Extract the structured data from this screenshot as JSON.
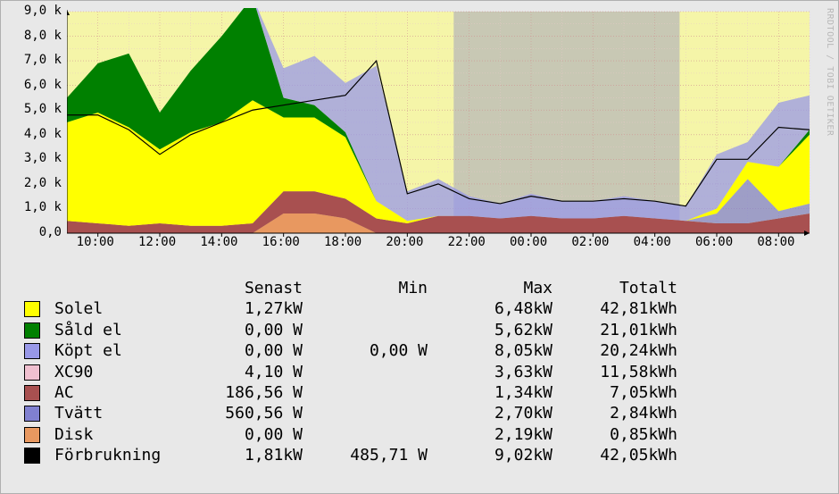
{
  "watermark": "RRDTOOL / TOBI OETIKER",
  "chart": {
    "type": "area-stacked",
    "background_color": "#f5f5a8",
    "night_band_color": "#b8b8b8",
    "grid_color_minor": "#e8c8c8",
    "grid_color_major": "#d09090",
    "axis_color": "#000000",
    "tick_font_size": 14,
    "x_ticks": [
      "10:00",
      "12:00",
      "14:00",
      "16:00",
      "18:00",
      "20:00",
      "22:00",
      "00:00",
      "02:00",
      "04:00",
      "06:00",
      "08:00"
    ],
    "y_ticks": [
      "0,0",
      "1,0 k",
      "2,0 k",
      "3,0 k",
      "4,0 k",
      "5,0 k",
      "6,0 k",
      "7,0 k",
      "8,0 k",
      "9,0 k"
    ],
    "ylim": [
      0,
      9000
    ],
    "x_range_hours": 24,
    "night_band": {
      "start_hour": 21.5,
      "end_hour": 28.8
    },
    "series": [
      {
        "name": "Solel",
        "color": "#ffff00",
        "kind": "area"
      },
      {
        "name": "Såld el",
        "color": "#008000",
        "kind": "area"
      },
      {
        "name": "Köpt el",
        "color": "#9898e8",
        "kind": "area"
      },
      {
        "name": "XC90",
        "color": "#f0c0d0",
        "kind": "area"
      },
      {
        "name": "AC",
        "color": "#a85050",
        "kind": "area"
      },
      {
        "name": "Tvätt",
        "color": "#8080d0",
        "kind": "area"
      },
      {
        "name": "Disk",
        "color": "#e89860",
        "kind": "area"
      },
      {
        "name": "Förbrukning",
        "color": "#000000",
        "kind": "line"
      }
    ],
    "approx_data": {
      "comment": "Hourly approximations read off the figure, values in watts. Stacked order bottom→top for area series.",
      "hours": [
        9,
        10,
        11,
        12,
        13,
        14,
        15,
        16,
        17,
        18,
        19,
        20,
        21,
        22,
        23,
        0,
        1,
        2,
        3,
        4,
        5,
        6,
        7,
        8,
        9
      ],
      "Disk": [
        0,
        0,
        0,
        0,
        0,
        0,
        0,
        800,
        800,
        600,
        0,
        0,
        0,
        0,
        0,
        0,
        0,
        0,
        0,
        0,
        0,
        0,
        0,
        0,
        0
      ],
      "AC": [
        500,
        400,
        300,
        400,
        300,
        300,
        400,
        900,
        900,
        800,
        600,
        400,
        700,
        700,
        600,
        700,
        600,
        600,
        700,
        600,
        500,
        400,
        400,
        600,
        800
      ],
      "XC90": [
        0,
        0,
        0,
        0,
        0,
        0,
        0,
        0,
        0,
        0,
        0,
        0,
        0,
        0,
        0,
        0,
        0,
        0,
        0,
        0,
        0,
        0,
        0,
        0,
        0
      ],
      "Tvätt": [
        0,
        0,
        0,
        0,
        0,
        0,
        0,
        0,
        0,
        0,
        0,
        0,
        0,
        0,
        0,
        0,
        0,
        0,
        0,
        0,
        0,
        400,
        1800,
        300,
        400
      ],
      "Solel": [
        4000,
        4500,
        4000,
        3000,
        3800,
        4200,
        5000,
        3000,
        3000,
        2500,
        700,
        100,
        0,
        0,
        0,
        0,
        0,
        0,
        0,
        0,
        0,
        200,
        700,
        1800,
        2800
      ],
      "Såld_el": [
        1000,
        2000,
        3000,
        1500,
        2500,
        3500,
        4200,
        800,
        500,
        200,
        0,
        0,
        0,
        0,
        0,
        0,
        0,
        0,
        0,
        0,
        0,
        0,
        0,
        0,
        200
      ],
      "Köpt_el": [
        0,
        0,
        0,
        0,
        0,
        0,
        0,
        1200,
        2000,
        2000,
        5500,
        1200,
        1500,
        800,
        600,
        900,
        700,
        700,
        800,
        700,
        600,
        2200,
        800,
        2600,
        1400
      ],
      "Förbrukning": [
        4800,
        4800,
        4200,
        3200,
        4000,
        4500,
        5000,
        5200,
        5400,
        5600,
        7000,
        1600,
        2000,
        1400,
        1200,
        1500,
        1300,
        1300,
        1400,
        1300,
        1100,
        3000,
        3000,
        4300,
        4200
      ]
    }
  },
  "legend": {
    "headers": {
      "senast": "Senast",
      "min": "Min",
      "max": "Max",
      "totalt": "Totalt"
    },
    "rows": [
      {
        "swatch": "#ffff00",
        "name": "Solel",
        "senast": "1,27kW",
        "min": "",
        "max": "6,48kW",
        "totalt": "42,81kWh"
      },
      {
        "swatch": "#008000",
        "name": "Såld el",
        "senast": "0,00 W",
        "min": "",
        "max": "5,62kW",
        "totalt": "21,01kWh"
      },
      {
        "swatch": "#9898e8",
        "name": "Köpt el",
        "senast": "0,00 W",
        "min": "0,00 W",
        "max": "8,05kW",
        "totalt": "20,24kWh"
      },
      {
        "swatch": "#f0c0d0",
        "name": "XC90",
        "senast": "4,10 W",
        "min": "",
        "max": "3,63kW",
        "totalt": "11,58kWh"
      },
      {
        "swatch": "#a85050",
        "name": "AC",
        "senast": "186,56 W",
        "min": "",
        "max": "1,34kW",
        "totalt": "7,05kWh"
      },
      {
        "swatch": "#8080d0",
        "name": "Tvätt",
        "senast": "560,56 W",
        "min": "",
        "max": "2,70kW",
        "totalt": "2,84kWh"
      },
      {
        "swatch": "#e89860",
        "name": "Disk",
        "senast": "0,00 W",
        "min": "",
        "max": "2,19kW",
        "totalt": "0,85kWh"
      },
      {
        "swatch": "#000000",
        "name": "Förbrukning",
        "senast": "1,81kW",
        "min": "485,71 W",
        "max": "9,02kW",
        "totalt": "42,05kWh"
      }
    ]
  }
}
